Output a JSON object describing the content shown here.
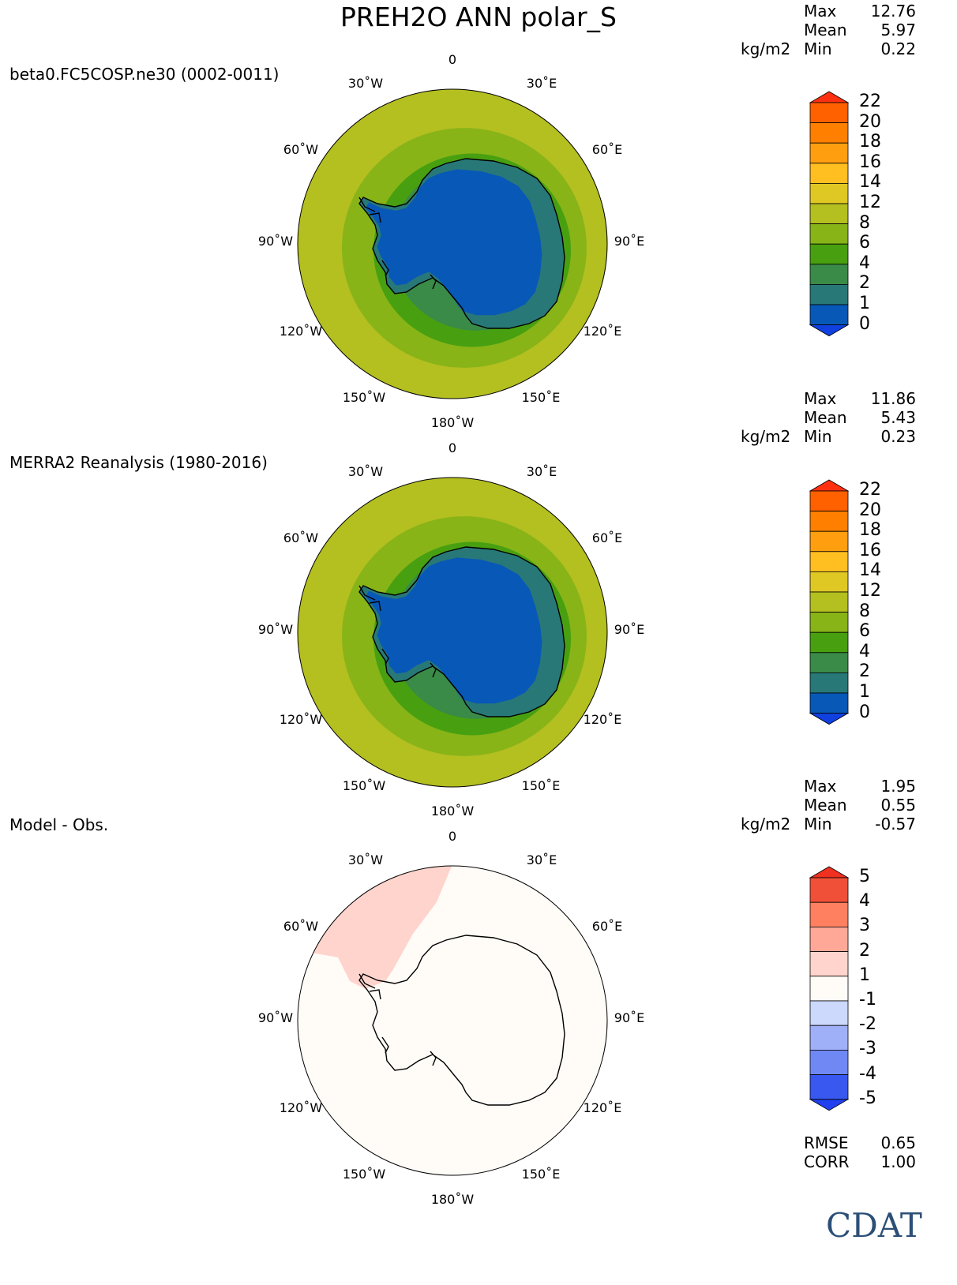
{
  "title": "PREH2O ANN polar_S",
  "units": "kg/m2",
  "panels": [
    {
      "title": "beta0.FC5COSP.ne30 (0002-0011)",
      "stats": [
        {
          "label": "Max",
          "value": "12.76"
        },
        {
          "label": "Mean",
          "value": "5.97"
        },
        {
          "label": "Min",
          "value": "0.22"
        }
      ],
      "colorbar": {
        "labels": [
          "22",
          "20",
          "18",
          "16",
          "14",
          "12",
          "8",
          "6",
          "4",
          "2",
          "1",
          "0"
        ],
        "colors": [
          "#ff6000",
          "#ff8000",
          "#ff9f10",
          "#ffbf20",
          "#e0c824",
          "#b4bf20",
          "#88b418",
          "#48a010",
          "#3a8a48",
          "#287878",
          "#0858b8"
        ],
        "extend_top": "#ff3010",
        "extend_bottom": "#1040e0"
      }
    },
    {
      "title": "MERRA2 Reanalysis (1980-2016)",
      "stats": [
        {
          "label": "Max",
          "value": "11.86"
        },
        {
          "label": "Mean",
          "value": "5.43"
        },
        {
          "label": "Min",
          "value": "0.23"
        }
      ],
      "colorbar": {
        "labels": [
          "22",
          "20",
          "18",
          "16",
          "14",
          "12",
          "8",
          "6",
          "4",
          "2",
          "1",
          "0"
        ],
        "colors": [
          "#ff6000",
          "#ff8000",
          "#ff9f10",
          "#ffbf20",
          "#e0c824",
          "#b4bf20",
          "#88b418",
          "#48a010",
          "#3a8a48",
          "#287878",
          "#0858b8"
        ],
        "extend_top": "#ff3010",
        "extend_bottom": "#1040e0"
      }
    },
    {
      "title": "Model - Obs.",
      "stats": [
        {
          "label": "Max",
          "value": "1.95"
        },
        {
          "label": "Mean",
          "value": "0.55"
        },
        {
          "label": "Min",
          "value": "-0.57"
        }
      ],
      "colorbar": {
        "labels": [
          "5",
          "4",
          "3",
          "2",
          "1",
          "-1",
          "-2",
          "-3",
          "-4",
          "-5"
        ],
        "colors": [
          "#f05038",
          "#ff8060",
          "#ffa898",
          "#ffd4cc",
          "#fffcf8",
          "#ccd8fc",
          "#a0b0f8",
          "#7088f4",
          "#3858f0"
        ],
        "extend_top": "#f03020",
        "extend_bottom": "#2040f0"
      }
    }
  ],
  "lon_ticks": [
    "0",
    "30˚E",
    "60˚E",
    "90˚E",
    "120˚E",
    "150˚E",
    "180˚W",
    "150˚W",
    "120˚W",
    "90˚W",
    "60˚W",
    "30˚W"
  ],
  "metrics": [
    {
      "label": "RMSE",
      "value": "0.65"
    },
    {
      "label": "CORR",
      "value": "1.00"
    }
  ],
  "logo": "CDAT"
}
